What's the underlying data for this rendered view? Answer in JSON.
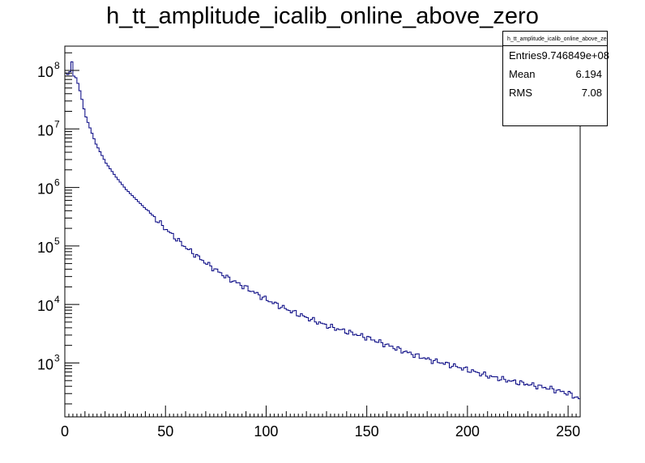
{
  "chart_data": {
    "type": "histogram",
    "title": "h_tt_amplitude_icalib_online_above_zero",
    "xlabel": "",
    "ylabel": "",
    "xlim": [
      0,
      256
    ],
    "ylim": [
      120,
      260000000
    ],
    "yscale": "log",
    "bin_width": 1,
    "line_color": "#000080",
    "x_ticks": [
      0,
      50,
      100,
      150,
      200,
      250
    ],
    "y_ticks": [
      {
        "base": "10",
        "exp": "3",
        "value": 1000
      },
      {
        "base": "10",
        "exp": "4",
        "value": 10000
      },
      {
        "base": "10",
        "exp": "5",
        "value": 100000
      },
      {
        "base": "10",
        "exp": "6",
        "value": 1000000
      },
      {
        "base": "10",
        "exp": "7",
        "value": 10000000
      },
      {
        "base": "10",
        "exp": "8",
        "value": 100000000
      }
    ],
    "series": [
      {
        "bin_edges_start": [
          0,
          1,
          2,
          3,
          4,
          5,
          6,
          7,
          8,
          9,
          10,
          15,
          20,
          25,
          30,
          40,
          50,
          60,
          70,
          80,
          90,
          100,
          110,
          120,
          130,
          140,
          150,
          160,
          170,
          180,
          190,
          200,
          210,
          220,
          230,
          240,
          250,
          255
        ],
        "counts": [
          90000000,
          85000000,
          95000000,
          140000000,
          80000000,
          75000000,
          60000000,
          45000000,
          32000000,
          22000000,
          16000000,
          5500000,
          2600000,
          1500000,
          920000,
          420000,
          190000,
          92000,
          50000,
          29000,
          19000,
          12000,
          8200,
          5900,
          4300,
          3400,
          2700,
          2000,
          1500,
          1150,
          950,
          760,
          600,
          500,
          430,
          370,
          300,
          245
        ]
      }
    ]
  },
  "stats_box": {
    "name": "h_tt_amplitude_icalib_online_above_zero",
    "rows": [
      {
        "label": "Entries",
        "value": "9.746849e+08"
      },
      {
        "label": "Mean",
        "value": "6.194"
      },
      {
        "label": "RMS",
        "value": "7.08"
      }
    ]
  }
}
